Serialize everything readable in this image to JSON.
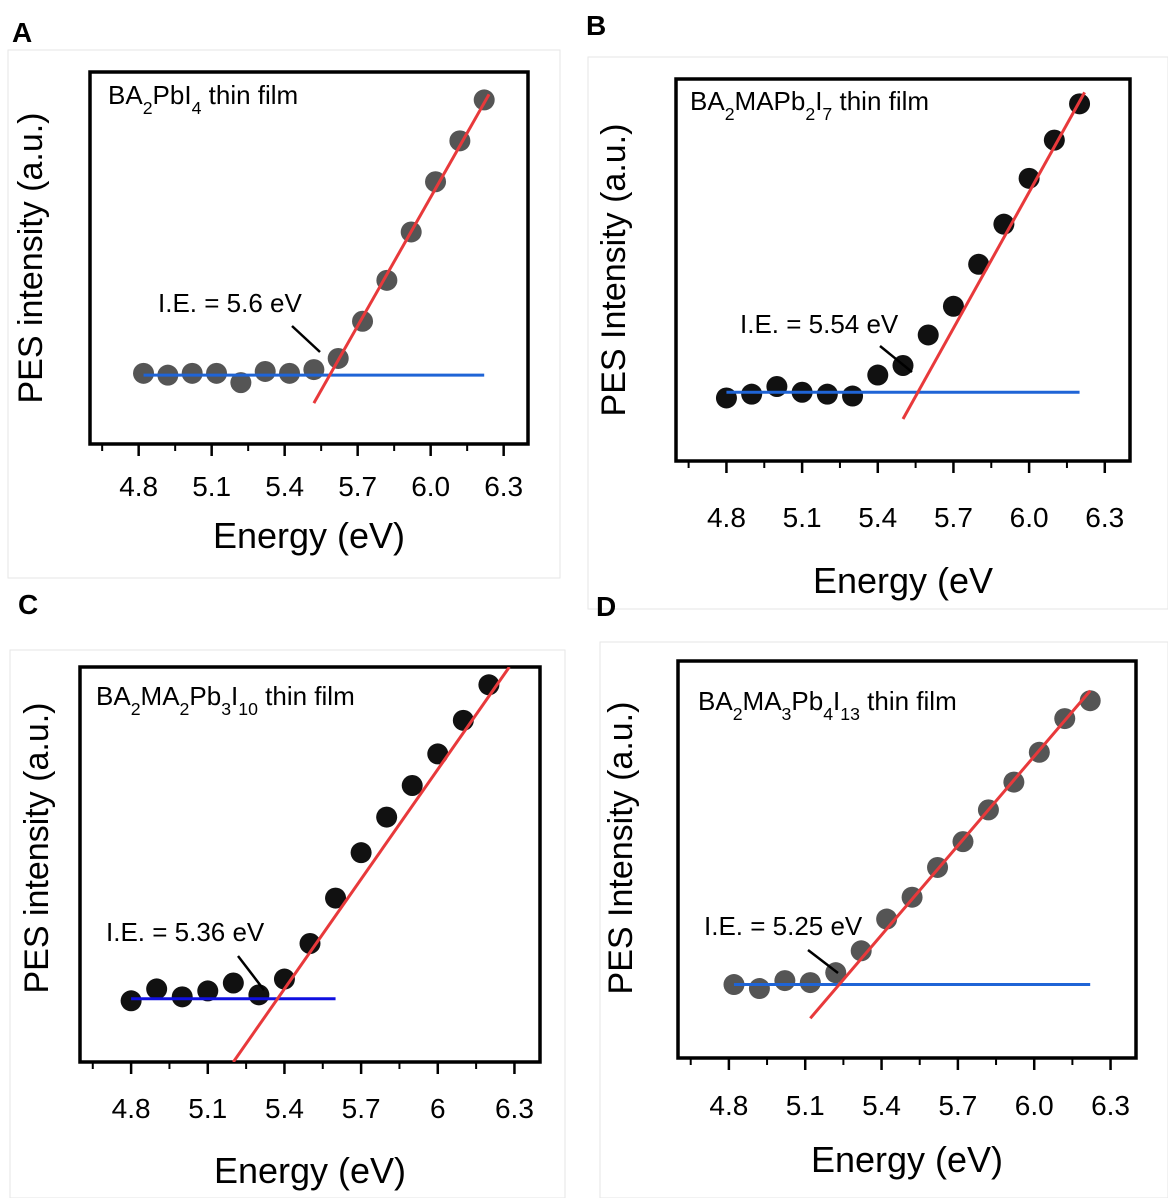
{
  "chart_data": [
    {
      "panel": "A",
      "type": "scatter",
      "title": "BA2PbI4 thin film",
      "xlabel": "Energy (eV)",
      "ylabel": "PES intensity (a.u.)",
      "xticks": [
        "4.8",
        "5.1",
        "5.4",
        "5.7",
        "6.0",
        "6.3"
      ],
      "xlim": [
        4.6,
        6.4
      ],
      "ylim": [
        0,
        1
      ],
      "annotation": "I.E. = 5.6 eV",
      "x": [
        4.82,
        4.92,
        5.02,
        5.12,
        5.22,
        5.32,
        5.42,
        5.52,
        5.62,
        5.72,
        5.82,
        5.92,
        6.02,
        6.12,
        6.22
      ],
      "y": [
        0.19,
        0.185,
        0.19,
        0.19,
        0.165,
        0.195,
        0.19,
        0.2,
        0.23,
        0.33,
        0.44,
        0.57,
        0.705,
        0.815,
        0.925
      ],
      "marker_color": "#555555",
      "baseline": {
        "x": [
          4.82,
          6.22
        ],
        "y": [
          0.185,
          0.185
        ],
        "color": "#1f64d6"
      },
      "fit_line": {
        "x": [
          5.52,
          6.24
        ],
        "y": [
          0.11,
          0.94
        ],
        "color": "#e8393b"
      }
    },
    {
      "panel": "B",
      "type": "scatter",
      "title": "BA2MAPb2I7 thin film",
      "xlabel": "Energy (eV",
      "ylabel": "PES Intensity (a.u.)",
      "xticks": [
        "4.8",
        "5.1",
        "5.4",
        "5.7",
        "6.0",
        "6.3"
      ],
      "xlim": [
        4.6,
        6.4
      ],
      "ylim": [
        0,
        1
      ],
      "annotation": "I.E. = 5.54 eV",
      "x": [
        4.8,
        4.9,
        5.0,
        5.1,
        5.2,
        5.3,
        5.4,
        5.5,
        5.6,
        5.7,
        5.8,
        5.9,
        6.0,
        6.1,
        6.2
      ],
      "y": [
        0.165,
        0.175,
        0.195,
        0.18,
        0.175,
        0.17,
        0.225,
        0.25,
        0.33,
        0.405,
        0.515,
        0.62,
        0.74,
        0.84,
        0.935
      ],
      "marker_color": "#111111",
      "baseline": {
        "x": [
          4.8,
          6.2
        ],
        "y": [
          0.18,
          0.18
        ],
        "color": "#1f64d6"
      },
      "fit_line": {
        "x": [
          5.5,
          6.22
        ],
        "y": [
          0.11,
          0.965
        ],
        "color": "#e8393b"
      }
    },
    {
      "panel": "C",
      "type": "scatter",
      "title": "BA2MA2Pb3I10 thin film",
      "xlabel": "Energy (eV)",
      "ylabel": "PES intensity (a.u.)",
      "xticks": [
        "4.8",
        "5.1",
        "5.4",
        "5.7",
        "6",
        "6.3"
      ],
      "xlim": [
        4.6,
        6.4
      ],
      "ylim": [
        0,
        1
      ],
      "annotation": "I.E. = 5.36 eV",
      "x": [
        4.8,
        4.9,
        5.0,
        5.1,
        5.2,
        5.3,
        5.4,
        5.5,
        5.6,
        5.7,
        5.8,
        5.9,
        6.0,
        6.1,
        6.2
      ],
      "y": [
        0.155,
        0.185,
        0.165,
        0.18,
        0.2,
        0.17,
        0.21,
        0.3,
        0.415,
        0.53,
        0.62,
        0.7,
        0.78,
        0.865,
        0.955
      ],
      "marker_color": "#111111",
      "baseline": {
        "x": [
          4.8,
          5.6
        ],
        "y": [
          0.16,
          0.16
        ],
        "color": "#1010e0"
      },
      "fit_line": {
        "x": [
          5.2,
          6.28
        ],
        "y": [
          0.0,
          1.0
        ],
        "color": "#e8393b"
      }
    },
    {
      "panel": "D",
      "type": "scatter",
      "title": "BA2MA3Pb4I13 thin film",
      "xlabel": "Energy (eV)",
      "ylabel": "PES Intensity (a.u.)",
      "xticks": [
        "4.8",
        "5.1",
        "5.4",
        "5.7",
        "6.0",
        "6.3"
      ],
      "xlim": [
        4.6,
        6.4
      ],
      "ylim": [
        0,
        1
      ],
      "annotation": "I.E. = 5.25 eV",
      "x": [
        4.82,
        4.92,
        5.02,
        5.12,
        5.22,
        5.32,
        5.42,
        5.52,
        5.62,
        5.72,
        5.82,
        5.92,
        6.02,
        6.12,
        6.22
      ],
      "y": [
        0.185,
        0.175,
        0.195,
        0.19,
        0.215,
        0.27,
        0.35,
        0.405,
        0.48,
        0.545,
        0.625,
        0.695,
        0.77,
        0.855,
        0.9
      ],
      "marker_color": "#555555",
      "baseline": {
        "x": [
          4.82,
          6.22
        ],
        "y": [
          0.185,
          0.185
        ],
        "color": "#1f64d6"
      },
      "fit_line": {
        "x": [
          5.12,
          6.22
        ],
        "y": [
          0.1,
          0.925
        ],
        "color": "#e8393b"
      }
    }
  ]
}
